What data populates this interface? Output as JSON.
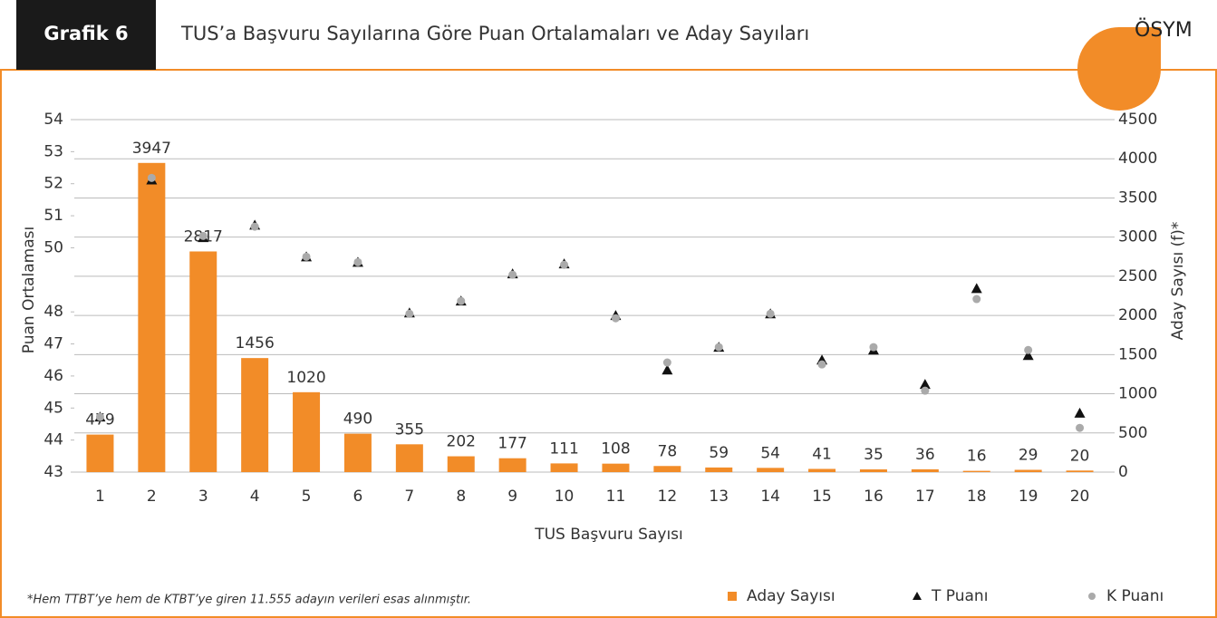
{
  "chart_data": {
    "type": "combo",
    "label": "Grafik 6",
    "title": "TUS’a Başvuru Sayılarına Göre Puan Ortalamaları ve Aday Sayıları",
    "logo": "ÖSYM",
    "x_label": "TUS Başvuru Sayısı",
    "y_label": "Puan Ortalaması",
    "y2_label": "Aday Sayısı (f)*",
    "note": "*Hem TTBT’ye hem de KTBT’ye giren 11.555 adayın verileri esas alınmıştır.",
    "categories": [
      "1",
      "2",
      "3",
      "4",
      "5",
      "6",
      "7",
      "8",
      "9",
      "10",
      "11",
      "12",
      "13",
      "14",
      "15",
      "16",
      "17",
      "18",
      "19",
      "20"
    ],
    "ylim": [
      43,
      54
    ],
    "yticks": [
      43,
      44,
      45,
      46,
      47,
      48,
      50,
      51,
      52,
      53,
      54
    ],
    "y2lim": [
      0,
      4500
    ],
    "y2ticks": [
      0,
      500,
      1000,
      1500,
      2000,
      2500,
      3000,
      3500,
      4000,
      4500
    ],
    "grid": true,
    "legend": "bottom-right",
    "series": [
      {
        "name": "Aday Sayısı",
        "type": "bar",
        "axis": "y2",
        "color": "#f28c28",
        "values": [
          479,
          3947,
          2817,
          1456,
          1020,
          490,
          355,
          202,
          177,
          111,
          108,
          78,
          59,
          54,
          41,
          35,
          36,
          16,
          29,
          20
        ]
      },
      {
        "name": "T Puanı",
        "type": "scatter",
        "marker": "triangle",
        "color": "#111111",
        "values": [
          44.72,
          52.12,
          50.32,
          50.71,
          49.72,
          49.55,
          47.97,
          48.34,
          49.19,
          49.5,
          47.89,
          46.19,
          46.9,
          47.94,
          46.5,
          46.81,
          45.74,
          48.73,
          46.64,
          44.84
        ]
      },
      {
        "name": "K Puanı",
        "type": "scatter",
        "marker": "circle",
        "color": "#aaaaaa",
        "values": [
          44.72,
          52.18,
          50.37,
          50.66,
          49.72,
          49.55,
          47.94,
          48.34,
          49.16,
          49.47,
          47.8,
          46.42,
          46.9,
          47.94,
          46.36,
          46.9,
          45.54,
          48.4,
          46.81,
          44.38
        ]
      }
    ]
  }
}
